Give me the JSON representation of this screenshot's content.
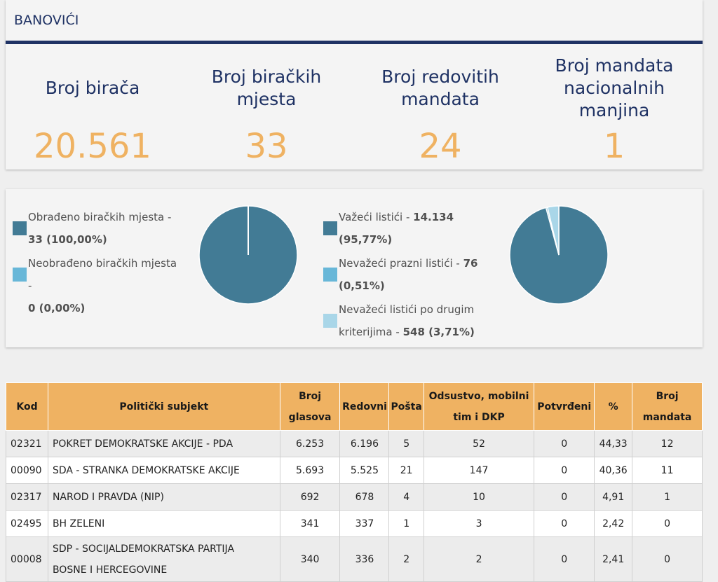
{
  "municipality": "BANOVIĆI",
  "stats": [
    {
      "label": "Broj birača",
      "value": "20.561"
    },
    {
      "label": "Broj biračkih mjesta",
      "value": "33"
    },
    {
      "label": "Broj redovitih mandata",
      "value": "24"
    },
    {
      "label": "Broj mandata nacionalnih manjina",
      "value": "1"
    }
  ],
  "polling": {
    "items": [
      {
        "text": "Obrađeno biračkih mjesta -",
        "value": "33 (100,00%)",
        "color": "#427b95"
      },
      {
        "text": "Neobrađeno biračkih mjesta -",
        "value": "0 (0,00%)",
        "color": "#68b7d8"
      }
    ],
    "fractions": [
      1.0,
      0.0
    ]
  },
  "ballots": {
    "items": [
      {
        "text": "Važeći listići -",
        "value": "14.134",
        "pct": "(95,77%)",
        "color": "#427b95"
      },
      {
        "text": "Nevažeći prazni listići -",
        "value": "76",
        "pct": "(0,51%)",
        "color": "#68b7d8"
      },
      {
        "text": "Nevažeći listići po drugim",
        "text2": "kriterijima -",
        "value": "548 (3,71%)",
        "color": "#a9d6e8"
      }
    ],
    "fractions": [
      0.9577,
      0.0051,
      0.0371
    ]
  },
  "table": {
    "headers": {
      "kod": "Kod",
      "subjekt": "Politički subjekt",
      "glasova": [
        "Broj",
        "glasova"
      ],
      "redovni": "Redovni",
      "posta": "Pošta",
      "odsustvo": [
        "Odsustvo, mobilni",
        "tim i DKP"
      ],
      "potvrdeni": "Potvrđeni",
      "pct": "%",
      "mandata": [
        "Broj",
        "mandata"
      ]
    },
    "rows": [
      {
        "kod": "02321",
        "subjekt": [
          "POKRET DEMOKRATSKE AKCIJE - PDA"
        ],
        "glasova": "6.253",
        "redovni": "6.196",
        "posta": "5",
        "odsustvo": "52",
        "potvrdeni": "0",
        "pct": "44,33",
        "mandata": "12"
      },
      {
        "kod": "00090",
        "subjekt": [
          "SDA - STRANKA DEMOKRATSKE AKCIJE"
        ],
        "glasova": "5.693",
        "redovni": "5.525",
        "posta": "21",
        "odsustvo": "147",
        "potvrdeni": "0",
        "pct": "40,36",
        "mandata": "11"
      },
      {
        "kod": "02317",
        "subjekt": [
          "NAROD I PRAVDA (NIP)"
        ],
        "glasova": "692",
        "redovni": "678",
        "posta": "4",
        "odsustvo": "10",
        "potvrdeni": "0",
        "pct": "4,91",
        "mandata": "1"
      },
      {
        "kod": "02495",
        "subjekt": [
          "BH ZELENI"
        ],
        "glasova": "341",
        "redovni": "337",
        "posta": "1",
        "odsustvo": "3",
        "potvrdeni": "0",
        "pct": "2,42",
        "mandata": "0"
      },
      {
        "kod": "00008",
        "subjekt": [
          "SDP - SOCIJALDEMOKRATSKA PARTIJA",
          "BOSNE I HERCEGOVINE"
        ],
        "glasova": "340",
        "redovni": "336",
        "posta": "2",
        "odsustvo": "2",
        "potvrdeni": "0",
        "pct": "2,41",
        "mandata": "0"
      }
    ]
  }
}
